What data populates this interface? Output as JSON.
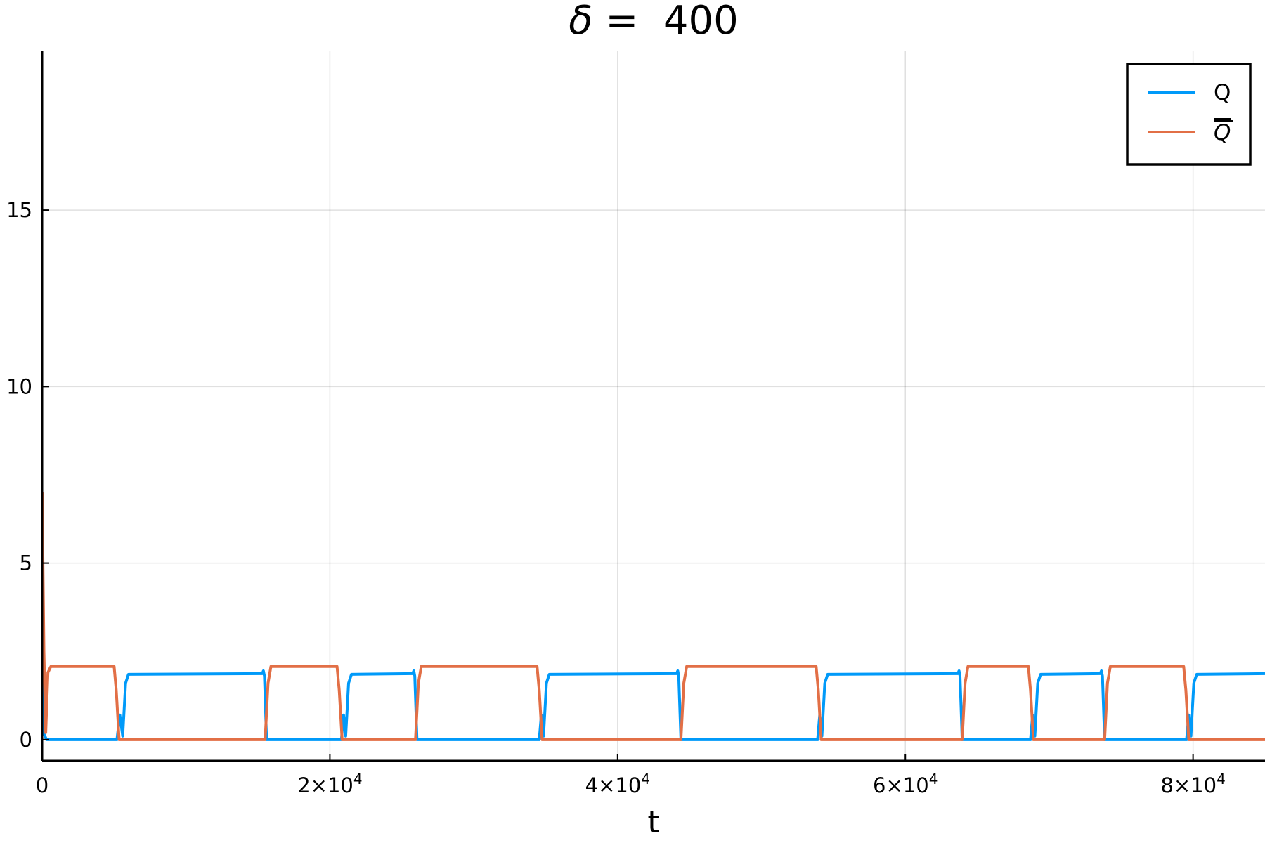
{
  "chart_data": {
    "type": "line",
    "title_symbol": "δ",
    "title_rest": " =  400",
    "xlabel": "t",
    "ylabel": "",
    "xlim": [
      0,
      85000
    ],
    "ylim": [
      -0.6,
      19.5
    ],
    "grid": true,
    "legend_position": "top-right",
    "x_ticks": [
      {
        "value": 0,
        "label": "0",
        "exp": ""
      },
      {
        "value": 20000,
        "label": "2×10",
        "exp": "4"
      },
      {
        "value": 40000,
        "label": "4×10",
        "exp": "4"
      },
      {
        "value": 60000,
        "label": "6×10",
        "exp": "4"
      },
      {
        "value": 80000,
        "label": "8×10",
        "exp": "4"
      }
    ],
    "y_ticks": [
      {
        "value": 0,
        "label": "0"
      },
      {
        "value": 5,
        "label": "5"
      },
      {
        "value": 10,
        "label": "10"
      },
      {
        "value": 15,
        "label": "15"
      }
    ],
    "series": [
      {
        "name": "Q",
        "color": "#009af9",
        "points": [
          [
            0,
            7.0
          ],
          [
            100,
            0.2
          ],
          [
            300,
            0.0
          ],
          [
            5200,
            0.0
          ],
          [
            5400,
            0.7
          ],
          [
            5600,
            0.1
          ],
          [
            5800,
            1.6
          ],
          [
            6000,
            1.85
          ],
          [
            15300,
            1.87
          ],
          [
            15380,
            1.95
          ],
          [
            15450,
            1.8
          ],
          [
            15600,
            0.0
          ],
          [
            20800,
            0.0
          ],
          [
            20950,
            0.7
          ],
          [
            21100,
            0.1
          ],
          [
            21300,
            1.6
          ],
          [
            21500,
            1.85
          ],
          [
            25750,
            1.87
          ],
          [
            25830,
            1.95
          ],
          [
            25900,
            1.8
          ],
          [
            26050,
            0.0
          ],
          [
            34550,
            0.0
          ],
          [
            34700,
            0.7
          ],
          [
            34850,
            0.1
          ],
          [
            35050,
            1.6
          ],
          [
            35250,
            1.85
          ],
          [
            44100,
            1.87
          ],
          [
            44180,
            1.95
          ],
          [
            44250,
            1.8
          ],
          [
            44400,
            0.0
          ],
          [
            53900,
            0.0
          ],
          [
            54050,
            0.7
          ],
          [
            54200,
            0.1
          ],
          [
            54400,
            1.6
          ],
          [
            54600,
            1.85
          ],
          [
            63650,
            1.87
          ],
          [
            63730,
            1.95
          ],
          [
            63800,
            1.8
          ],
          [
            63950,
            0.0
          ],
          [
            68700,
            0.0
          ],
          [
            68850,
            0.7
          ],
          [
            69000,
            0.1
          ],
          [
            69200,
            1.6
          ],
          [
            69400,
            1.85
          ],
          [
            73550,
            1.87
          ],
          [
            73630,
            1.95
          ],
          [
            73700,
            1.8
          ],
          [
            73850,
            0.0
          ],
          [
            79550,
            0.0
          ],
          [
            79700,
            0.7
          ],
          [
            79850,
            0.1
          ],
          [
            80050,
            1.6
          ],
          [
            80250,
            1.85
          ],
          [
            85000,
            1.87
          ]
        ]
      },
      {
        "name": "Q",
        "overline": true,
        "color": "#e26f46",
        "points": [
          [
            0,
            7.0
          ],
          [
            120,
            2.5
          ],
          [
            250,
            0.2
          ],
          [
            400,
            1.9
          ],
          [
            600,
            2.07
          ],
          [
            5000,
            2.07
          ],
          [
            5150,
            1.4
          ],
          [
            5350,
            0.0
          ],
          [
            15500,
            0.0
          ],
          [
            15700,
            1.6
          ],
          [
            15900,
            2.07
          ],
          [
            20500,
            2.07
          ],
          [
            20650,
            1.4
          ],
          [
            20850,
            0.0
          ],
          [
            25950,
            0.0
          ],
          [
            26150,
            1.6
          ],
          [
            26350,
            2.07
          ],
          [
            34400,
            2.07
          ],
          [
            34550,
            1.4
          ],
          [
            34750,
            0.0
          ],
          [
            44400,
            0.0
          ],
          [
            44600,
            1.6
          ],
          [
            44800,
            2.07
          ],
          [
            53800,
            2.07
          ],
          [
            53950,
            1.4
          ],
          [
            54150,
            0.0
          ],
          [
            63950,
            0.0
          ],
          [
            64150,
            1.6
          ],
          [
            64350,
            2.07
          ],
          [
            68550,
            2.07
          ],
          [
            68700,
            1.4
          ],
          [
            68900,
            0.0
          ],
          [
            73850,
            0.0
          ],
          [
            74050,
            1.6
          ],
          [
            74250,
            2.07
          ],
          [
            79350,
            2.07
          ],
          [
            79500,
            1.4
          ],
          [
            79700,
            0.0
          ],
          [
            85000,
            0.0
          ]
        ]
      }
    ]
  }
}
